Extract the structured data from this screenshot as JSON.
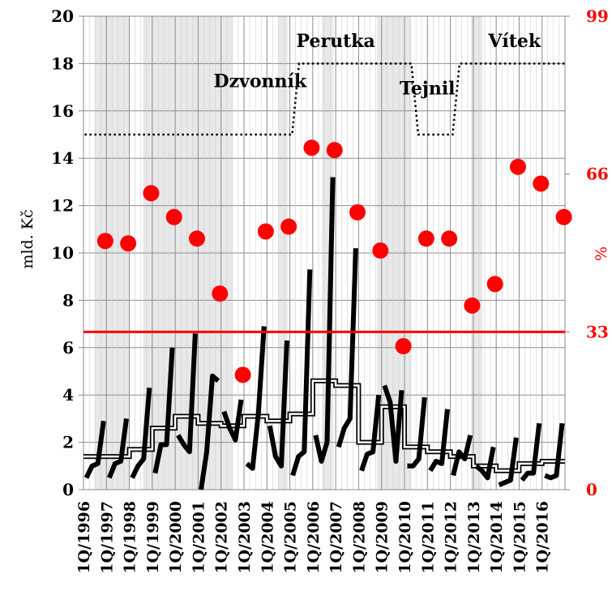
{
  "chart_data": {
    "type": "line",
    "title": "",
    "ylabel_left": "mld. Kč",
    "ylabel_right": "%",
    "ylim_left": [
      0,
      20
    ],
    "ylim_right": [
      0,
      99
    ],
    "yticks_left": [
      "0",
      "2",
      "4",
      "6",
      "8",
      "10",
      "12",
      "14",
      "16",
      "18",
      "20"
    ],
    "yticks_right": [
      "0",
      "33",
      "66",
      "99"
    ],
    "ytick_values_right": [
      0,
      33,
      66,
      99
    ],
    "x_labels": [
      "1Q/1996",
      "1Q/1997",
      "1Q/1998",
      "1Q/1999",
      "1Q/2000",
      "1Q/2001",
      "1Q/2002",
      "1Q/2003",
      "1Q/2004",
      "1Q/2005",
      "1Q/2006",
      "1Q/2007",
      "1Q/2008",
      "1Q/2009",
      "1Q/2010",
      "1Q/2011",
      "1Q/2012",
      "1Q/2013",
      "1Q/2014",
      "1Q/2015",
      "1Q/2016"
    ],
    "grid": true,
    "colors": {
      "quarterly": "#000000",
      "average": "#000000",
      "percent_points": "#ff0000",
      "reference_line": "#ff0000",
      "minister_tenure": "#000000",
      "shading": "#e8e8e8"
    },
    "shaded_years": [
      [
        1996.5,
        1998
      ],
      [
        1998.6,
        2002.5
      ],
      [
        2004.5,
        2004.9
      ],
      [
        2006.4,
        2006.9
      ],
      [
        2008.8,
        2010.3
      ],
      [
        2012.9,
        2013.4
      ]
    ],
    "quarterly_series": {
      "values": [
        0.5,
        1.0,
        1.1,
        2.9,
        0.5,
        1.1,
        1.2,
        3.0,
        0.5,
        1.0,
        1.3,
        4.3,
        0.7,
        1.9,
        1.9,
        6.0,
        2.3,
        1.9,
        1.6,
        6.6,
        0.0,
        1.6,
        4.8,
        4.6,
        3.3,
        2.6,
        2.1,
        3.8,
        1.1,
        0.9,
        3.2,
        6.9,
        2.7,
        1.4,
        1.0,
        6.3,
        0.6,
        1.4,
        1.6,
        9.3,
        2.3,
        1.2,
        2.0,
        13.2,
        1.8,
        2.6,
        3.0,
        10.2,
        0.8,
        1.5,
        1.6,
        4.0,
        4.4,
        3.7,
        1.2,
        4.2,
        1.0,
        1.0,
        1.3,
        3.9,
        0.8,
        1.2,
        1.1,
        3.4,
        0.6,
        1.6,
        1.3,
        2.3,
        1.0,
        0.8,
        0.5,
        1.8,
        0.2,
        0.3,
        0.4,
        2.2,
        0.4,
        0.7,
        0.7,
        2.8,
        0.6,
        0.5,
        0.6,
        2.8
      ]
    },
    "annual_average_series": {
      "values": [
        1.4,
        1.4,
        1.7,
        2.6,
        3.1,
        2.8,
        2.7,
        3.1,
        2.9,
        3.2,
        4.6,
        4.4,
        2.0,
        3.5,
        1.8,
        1.6,
        1.4,
        1.0,
        0.8,
        1.1,
        1.2
      ]
    },
    "percent_points": {
      "x": [
        1997,
        1998,
        1999,
        2000,
        2001,
        2002,
        2003,
        2004,
        2005,
        2006,
        2007,
        2008,
        2009,
        2010,
        2011,
        2012,
        2013,
        2014,
        2015,
        2016,
        2017
      ],
      "values": [
        52,
        51.5,
        62,
        57,
        52.5,
        41,
        24,
        54,
        55,
        71.5,
        71,
        58,
        50,
        30,
        52.5,
        52.5,
        38.5,
        43,
        67.5,
        64,
        57
      ]
    },
    "reference_line_value": 33,
    "minister_tenure": {
      "levels": [
        15,
        18,
        18,
        15,
        18
      ],
      "labels": [
        "Dzvonník",
        "Perutka",
        "Tejnil",
        "Vítek"
      ]
    }
  }
}
